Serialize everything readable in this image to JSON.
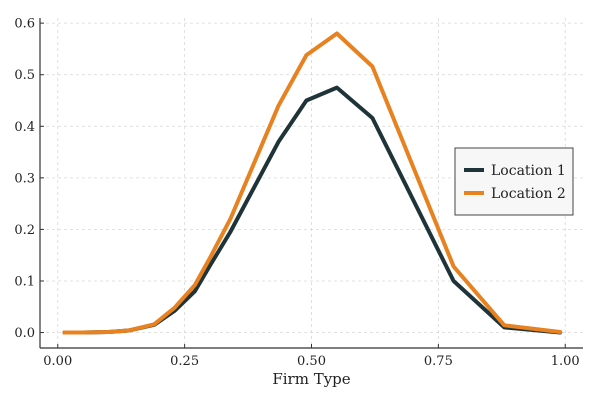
{
  "chart_data": {
    "type": "line",
    "title": "",
    "xlabel": "Firm Type",
    "ylabel": "",
    "xlim": [
      -0.035,
      1.035
    ],
    "ylim": [
      -0.03,
      0.61
    ],
    "grid": true,
    "legend_position": "right",
    "x_ticks": [
      0.0,
      0.25,
      0.5,
      0.75,
      1.0
    ],
    "x_tick_labels": [
      "0.00",
      "0.25",
      "0.50",
      "0.75",
      "1.00"
    ],
    "y_ticks": [
      0.0,
      0.1,
      0.2,
      0.3,
      0.4,
      0.5,
      0.6
    ],
    "y_tick_labels": [
      "0.0",
      "0.1",
      "0.2",
      "0.3",
      "0.4",
      "0.5",
      "0.6"
    ],
    "series": [
      {
        "name": "Location 1",
        "color": "#1f3438",
        "x": [
          0.013,
          0.05,
          0.1,
          0.14,
          0.19,
          0.23,
          0.27,
          0.3,
          0.34,
          0.435,
          0.49,
          0.55,
          0.62,
          0.78,
          0.88,
          0.99
        ],
        "values": [
          0.0,
          0.0,
          0.001,
          0.004,
          0.015,
          0.042,
          0.08,
          0.13,
          0.195,
          0.37,
          0.45,
          0.475,
          0.416,
          0.1,
          0.01,
          0.0
        ]
      },
      {
        "name": "Location 2",
        "color": "#e8811f",
        "x": [
          0.013,
          0.05,
          0.1,
          0.14,
          0.19,
          0.23,
          0.27,
          0.3,
          0.34,
          0.435,
          0.49,
          0.55,
          0.62,
          0.78,
          0.88,
          0.99
        ],
        "values": [
          0.0,
          0.0,
          0.001,
          0.004,
          0.016,
          0.048,
          0.092,
          0.145,
          0.22,
          0.44,
          0.538,
          0.58,
          0.516,
          0.128,
          0.014,
          0.001
        ]
      }
    ]
  }
}
